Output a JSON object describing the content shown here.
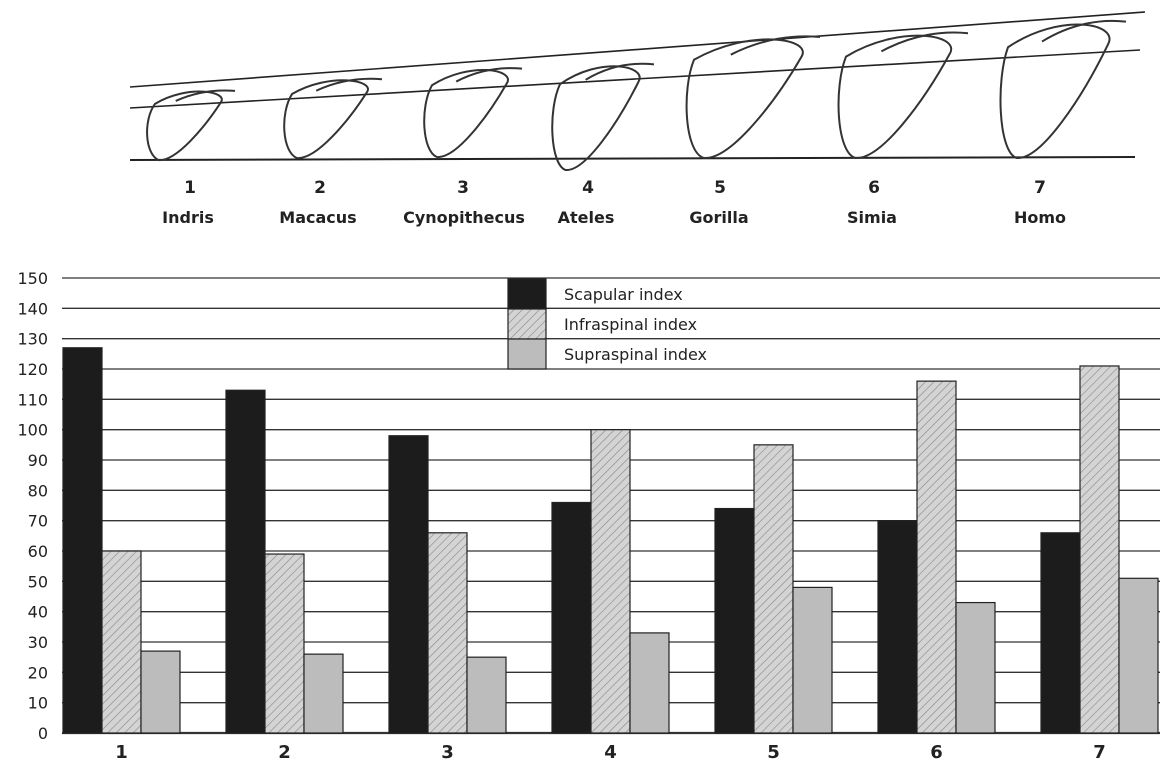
{
  "specimens": [
    {
      "number": "1",
      "name": "Indris"
    },
    {
      "number": "2",
      "name": "Macacus"
    },
    {
      "number": "3",
      "name": "Cynopithecus"
    },
    {
      "number": "4",
      "name": "Ateles"
    },
    {
      "number": "5",
      "name": "Gorilla"
    },
    {
      "number": "6",
      "name": "Simia"
    },
    {
      "number": "7",
      "name": "Homo"
    }
  ],
  "chart_data": {
    "type": "bar",
    "title": "",
    "xlabel": "",
    "ylabel": "",
    "categories": [
      "1",
      "2",
      "3",
      "4",
      "5",
      "6",
      "7"
    ],
    "series": [
      {
        "name": "Scapular index",
        "color": "#1a1a1a",
        "values": [
          127,
          113,
          98,
          76,
          74,
          70,
          66
        ]
      },
      {
        "name": "Infraspinal index",
        "color": "#c8c8c8",
        "values": [
          60,
          59,
          66,
          100,
          95,
          116,
          121
        ]
      },
      {
        "name": "Supraspinal index",
        "color": "#b4b4b4",
        "values": [
          27,
          26,
          25,
          33,
          48,
          43,
          51
        ]
      }
    ],
    "ylim": [
      0,
      150
    ],
    "yticks": [
      0,
      10,
      20,
      30,
      40,
      50,
      60,
      70,
      80,
      90,
      100,
      110,
      120,
      130,
      140,
      150
    ],
    "grid": true,
    "legend_position": "top-center"
  }
}
